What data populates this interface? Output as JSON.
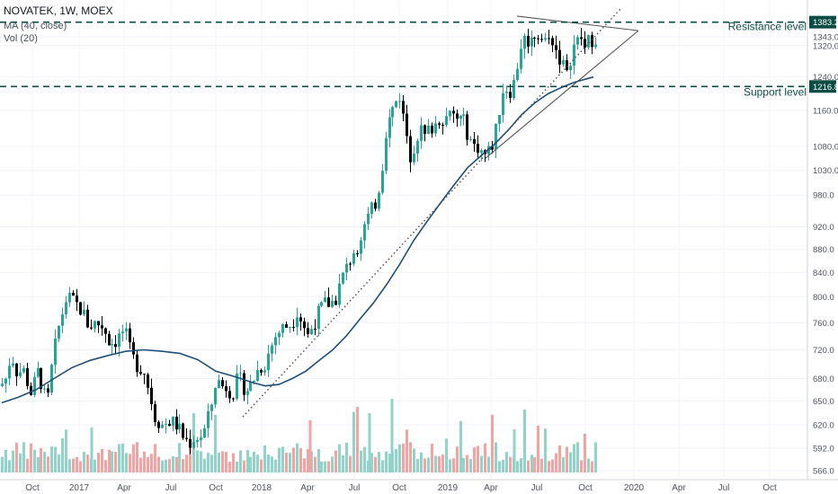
{
  "legend": {
    "symbol_line": "NOVATEK, 1W, MOEX",
    "ma_line": "MA (40, close)",
    "vol_line": "Vol (20)"
  },
  "annotations": {
    "resistance_label": "Resistance level",
    "support_label": "Support level"
  },
  "colors": {
    "up_candle": "#26a69a",
    "down_candle": "#000000",
    "volume_up": "#8fd3c9",
    "volume_down": "#f4a3a3",
    "ma_line": "#1f4e79",
    "level_line": "#0b4d45",
    "trend_line": "#555555",
    "grid": "#f0f3fa",
    "axis_text": "#50535e"
  },
  "chart_data": {
    "type": "candlestick",
    "y_axis": {
      "scale": "log",
      "ylim": [
        566.0,
        1420.0
      ],
      "ticks": [
        "1383.2",
        "1343.0",
        "1320.0",
        "1240.0",
        "1216.8",
        "1160.0",
        "1080.0",
        "1030.0",
        "980.0",
        "920.0",
        "880.0",
        "840.0",
        "800.0",
        "760.0",
        "720.0",
        "680.0",
        "650.0",
        "620.0",
        "592.0",
        "566.0"
      ],
      "highlighted_ticks": [
        "1383.2",
        "1216.8"
      ]
    },
    "x_axis": {
      "labels": [
        "Oct",
        "2017",
        "Apr",
        "Jul",
        "Oct",
        "2018",
        "Apr",
        "Jul",
        "Oct",
        "2019",
        "Apr",
        "Jul",
        "Oct",
        "2020",
        "Apr",
        "Jul",
        "Oct"
      ]
    },
    "levels": [
      {
        "name": "Resistance level",
        "value": 1383.2
      },
      {
        "name": "Support level",
        "value": 1216.8
      }
    ],
    "price_path": [
      [
        0,
        670
      ],
      [
        6,
        680
      ],
      [
        12,
        715
      ],
      [
        18,
        690
      ],
      [
        26,
        690
      ],
      [
        34,
        660
      ],
      [
        42,
        690
      ],
      [
        48,
        665
      ],
      [
        52,
        640
      ],
      [
        58,
        700
      ],
      [
        66,
        760
      ],
      [
        74,
        800
      ],
      [
        82,
        790
      ],
      [
        90,
        780
      ],
      [
        98,
        755
      ],
      [
        106,
        760
      ],
      [
        114,
        755
      ],
      [
        122,
        730
      ],
      [
        130,
        735
      ],
      [
        138,
        750
      ],
      [
        146,
        710
      ],
      [
        152,
        700
      ],
      [
        160,
        690
      ],
      [
        166,
        660
      ],
      [
        172,
        630
      ],
      [
        180,
        620
      ],
      [
        188,
        625
      ],
      [
        196,
        620
      ],
      [
        204,
        605
      ],
      [
        210,
        598
      ],
      [
        216,
        605
      ],
      [
        222,
        605
      ],
      [
        228,
        615
      ],
      [
        234,
        640
      ],
      [
        240,
        680
      ],
      [
        246,
        670
      ],
      [
        252,
        670
      ],
      [
        258,
        660
      ],
      [
        264,
        680
      ],
      [
        270,
        670
      ],
      [
        276,
        665
      ],
      [
        282,
        680
      ],
      [
        288,
        695
      ],
      [
        294,
        700
      ],
      [
        300,
        720
      ],
      [
        306,
        740
      ],
      [
        312,
        750
      ],
      [
        318,
        755
      ],
      [
        324,
        760
      ],
      [
        330,
        780
      ],
      [
        336,
        760
      ],
      [
        342,
        740
      ],
      [
        348,
        760
      ],
      [
        356,
        780
      ],
      [
        362,
        790
      ],
      [
        368,
        790
      ],
      [
        374,
        800
      ],
      [
        380,
        830
      ],
      [
        386,
        850
      ],
      [
        392,
        875
      ],
      [
        398,
        890
      ],
      [
        404,
        920
      ],
      [
        410,
        940
      ],
      [
        416,
        960
      ],
      [
        420,
        990
      ],
      [
        424,
        1030
      ],
      [
        428,
        1110
      ],
      [
        434,
        1150
      ],
      [
        440,
        1180
      ],
      [
        444,
        1200
      ],
      [
        448,
        1150
      ],
      [
        452,
        1110
      ],
      [
        456,
        1060
      ],
      [
        460,
        1080
      ],
      [
        466,
        1120
      ],
      [
        472,
        1100
      ],
      [
        478,
        1120
      ],
      [
        484,
        1130
      ],
      [
        490,
        1150
      ],
      [
        496,
        1140
      ],
      [
        502,
        1150
      ],
      [
        508,
        1140
      ],
      [
        514,
        1140
      ],
      [
        520,
        1110
      ],
      [
        526,
        1080
      ],
      [
        532,
        1080
      ],
      [
        538,
        1060
      ],
      [
        544,
        1070
      ],
      [
        548,
        1090
      ],
      [
        552,
        1120
      ],
      [
        556,
        1180
      ],
      [
        560,
        1220
      ],
      [
        566,
        1205
      ],
      [
        572,
        1230
      ],
      [
        578,
        1320
      ],
      [
        584,
        1340
      ],
      [
        590,
        1330
      ],
      [
        596,
        1360
      ],
      [
        602,
        1340
      ],
      [
        608,
        1330
      ],
      [
        614,
        1340
      ],
      [
        618,
        1310
      ],
      [
        622,
        1290
      ],
      [
        626,
        1270
      ],
      [
        630,
        1240
      ],
      [
        634,
        1290
      ],
      [
        638,
        1320
      ],
      [
        642,
        1330
      ],
      [
        646,
        1340
      ],
      [
        650,
        1310
      ],
      [
        654,
        1330
      ],
      [
        658,
        1340
      ],
      [
        662,
        1345
      ]
    ],
    "ma_path": [
      [
        2,
        648
      ],
      [
        20,
        655
      ],
      [
        40,
        665
      ],
      [
        60,
        680
      ],
      [
        80,
        695
      ],
      [
        100,
        705
      ],
      [
        120,
        712
      ],
      [
        140,
        718
      ],
      [
        160,
        720
      ],
      [
        180,
        718
      ],
      [
        200,
        715
      ],
      [
        220,
        706
      ],
      [
        240,
        690
      ],
      [
        260,
        683
      ],
      [
        280,
        675
      ],
      [
        295,
        670
      ],
      [
        310,
        672
      ],
      [
        325,
        680
      ],
      [
        340,
        690
      ],
      [
        355,
        705
      ],
      [
        370,
        720
      ],
      [
        385,
        740
      ],
      [
        400,
        765
      ],
      [
        415,
        790
      ],
      [
        430,
        820
      ],
      [
        445,
        855
      ],
      [
        460,
        895
      ],
      [
        475,
        930
      ],
      [
        490,
        965
      ],
      [
        505,
        1000
      ],
      [
        520,
        1035
      ],
      [
        535,
        1060
      ],
      [
        550,
        1085
      ],
      [
        565,
        1115
      ],
      [
        580,
        1150
      ],
      [
        595,
        1178
      ],
      [
        610,
        1200
      ],
      [
        625,
        1215
      ],
      [
        640,
        1228
      ],
      [
        660,
        1240
      ]
    ],
    "trend_lines": [
      {
        "name": "upper-resistance",
        "from": [
          575,
          1400
        ],
        "to": [
          710,
          1360
        ]
      },
      {
        "name": "lower-triangle",
        "from": [
          540,
          1055
        ],
        "to": [
          710,
          1360
        ]
      },
      {
        "name": "dotted-trend",
        "from": [
          270,
          630
        ],
        "to": [
          690,
          1420
        ],
        "style": "dotted"
      }
    ]
  }
}
